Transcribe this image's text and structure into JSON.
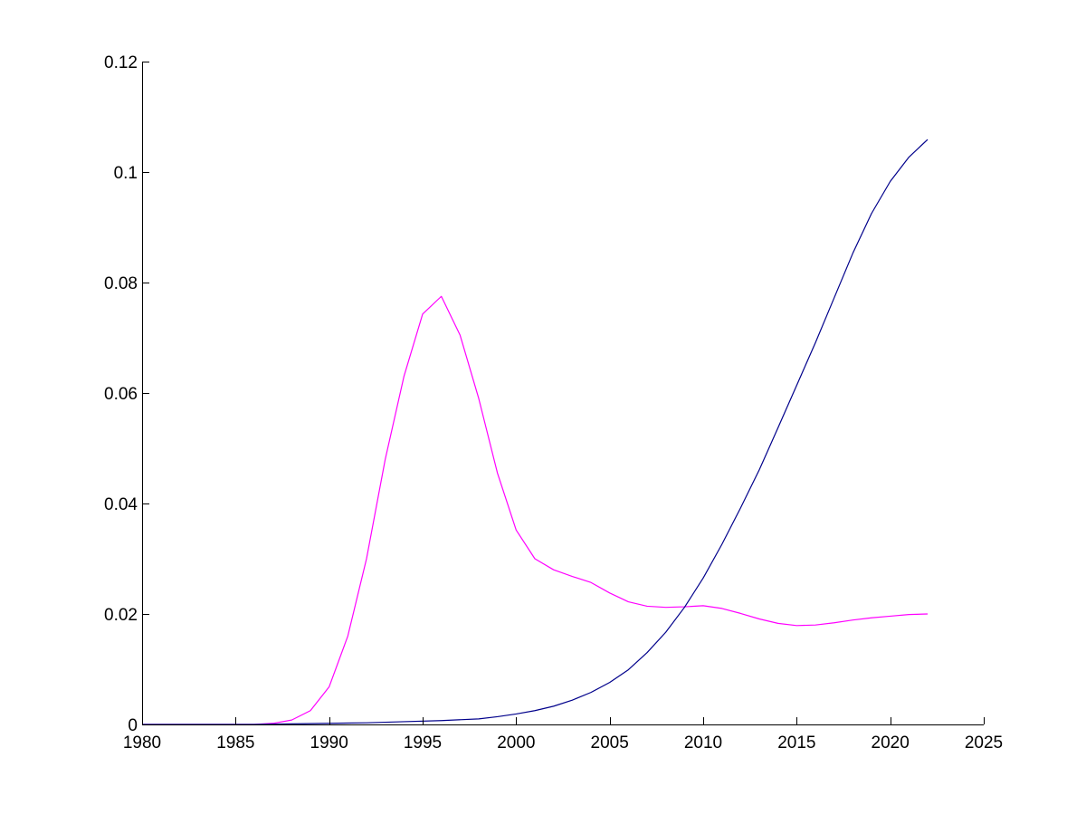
{
  "chart_data": {
    "type": "line",
    "title": "",
    "xlabel": "",
    "ylabel": "",
    "xlim": [
      1980,
      2025
    ],
    "ylim": [
      0,
      0.12
    ],
    "xticks": [
      1980,
      1985,
      1990,
      1995,
      2000,
      2005,
      2010,
      2015,
      2020,
      2025
    ],
    "xtick_labels": [
      "1980",
      "1985",
      "1990",
      "1995",
      "2000",
      "2005",
      "2010",
      "2015",
      "2020",
      "2025"
    ],
    "yticks": [
      0,
      0.02,
      0.04,
      0.06,
      0.08,
      0.1,
      0.12
    ],
    "ytick_labels": [
      "0",
      "0.02",
      "0.04",
      "0.06",
      "0.08",
      "0.1",
      "0.12"
    ],
    "grid": false,
    "legend": "none",
    "series": [
      {
        "color": "#ff00ff",
        "x": [
          1980,
          1981,
          1982,
          1983,
          1984,
          1985,
          1986,
          1987,
          1988,
          1989,
          1990,
          1991,
          1992,
          1993,
          1994,
          1995,
          1996,
          1997,
          1998,
          1999,
          2000,
          2001,
          2002,
          2003,
          2004,
          2005,
          2006,
          2007,
          2008,
          2009,
          2010,
          2011,
          2012,
          2013,
          2014,
          2015,
          2016,
          2017,
          2018,
          2019,
          2020,
          2021,
          2022
        ],
        "y": [
          0,
          0,
          0,
          0,
          0,
          0,
          0,
          0.0002,
          0.0008,
          0.0025,
          0.0068,
          0.016,
          0.03,
          0.048,
          0.063,
          0.0743,
          0.0775,
          0.0705,
          0.059,
          0.0455,
          0.0352,
          0.03,
          0.028,
          0.0268,
          0.0257,
          0.0238,
          0.0222,
          0.0214,
          0.0212,
          0.0213,
          0.0215,
          0.021,
          0.0201,
          0.0191,
          0.0183,
          0.0179,
          0.018,
          0.0184,
          0.0189,
          0.0193,
          0.0196,
          0.0199,
          0.02
        ]
      },
      {
        "color": "#00008b",
        "x": [
          1980,
          1982,
          1984,
          1986,
          1988,
          1990,
          1992,
          1994,
          1996,
          1998,
          1999,
          2000,
          2001,
          2002,
          2003,
          2004,
          2005,
          2006,
          2007,
          2008,
          2009,
          2010,
          2011,
          2012,
          2013,
          2014,
          2015,
          2016,
          2017,
          2018,
          2019,
          2020,
          2021,
          2022
        ],
        "y": [
          0,
          0,
          0,
          0,
          0.0001,
          0.0002,
          0.0003,
          0.0005,
          0.0007,
          0.001,
          0.0014,
          0.0019,
          0.0025,
          0.0033,
          0.0044,
          0.0058,
          0.0076,
          0.0099,
          0.013,
          0.0167,
          0.0212,
          0.0265,
          0.0326,
          0.0392,
          0.0461,
          0.0537,
          0.0614,
          0.0691,
          0.0772,
          0.0853,
          0.0925,
          0.0983,
          0.1027,
          0.1059
        ]
      }
    ]
  }
}
